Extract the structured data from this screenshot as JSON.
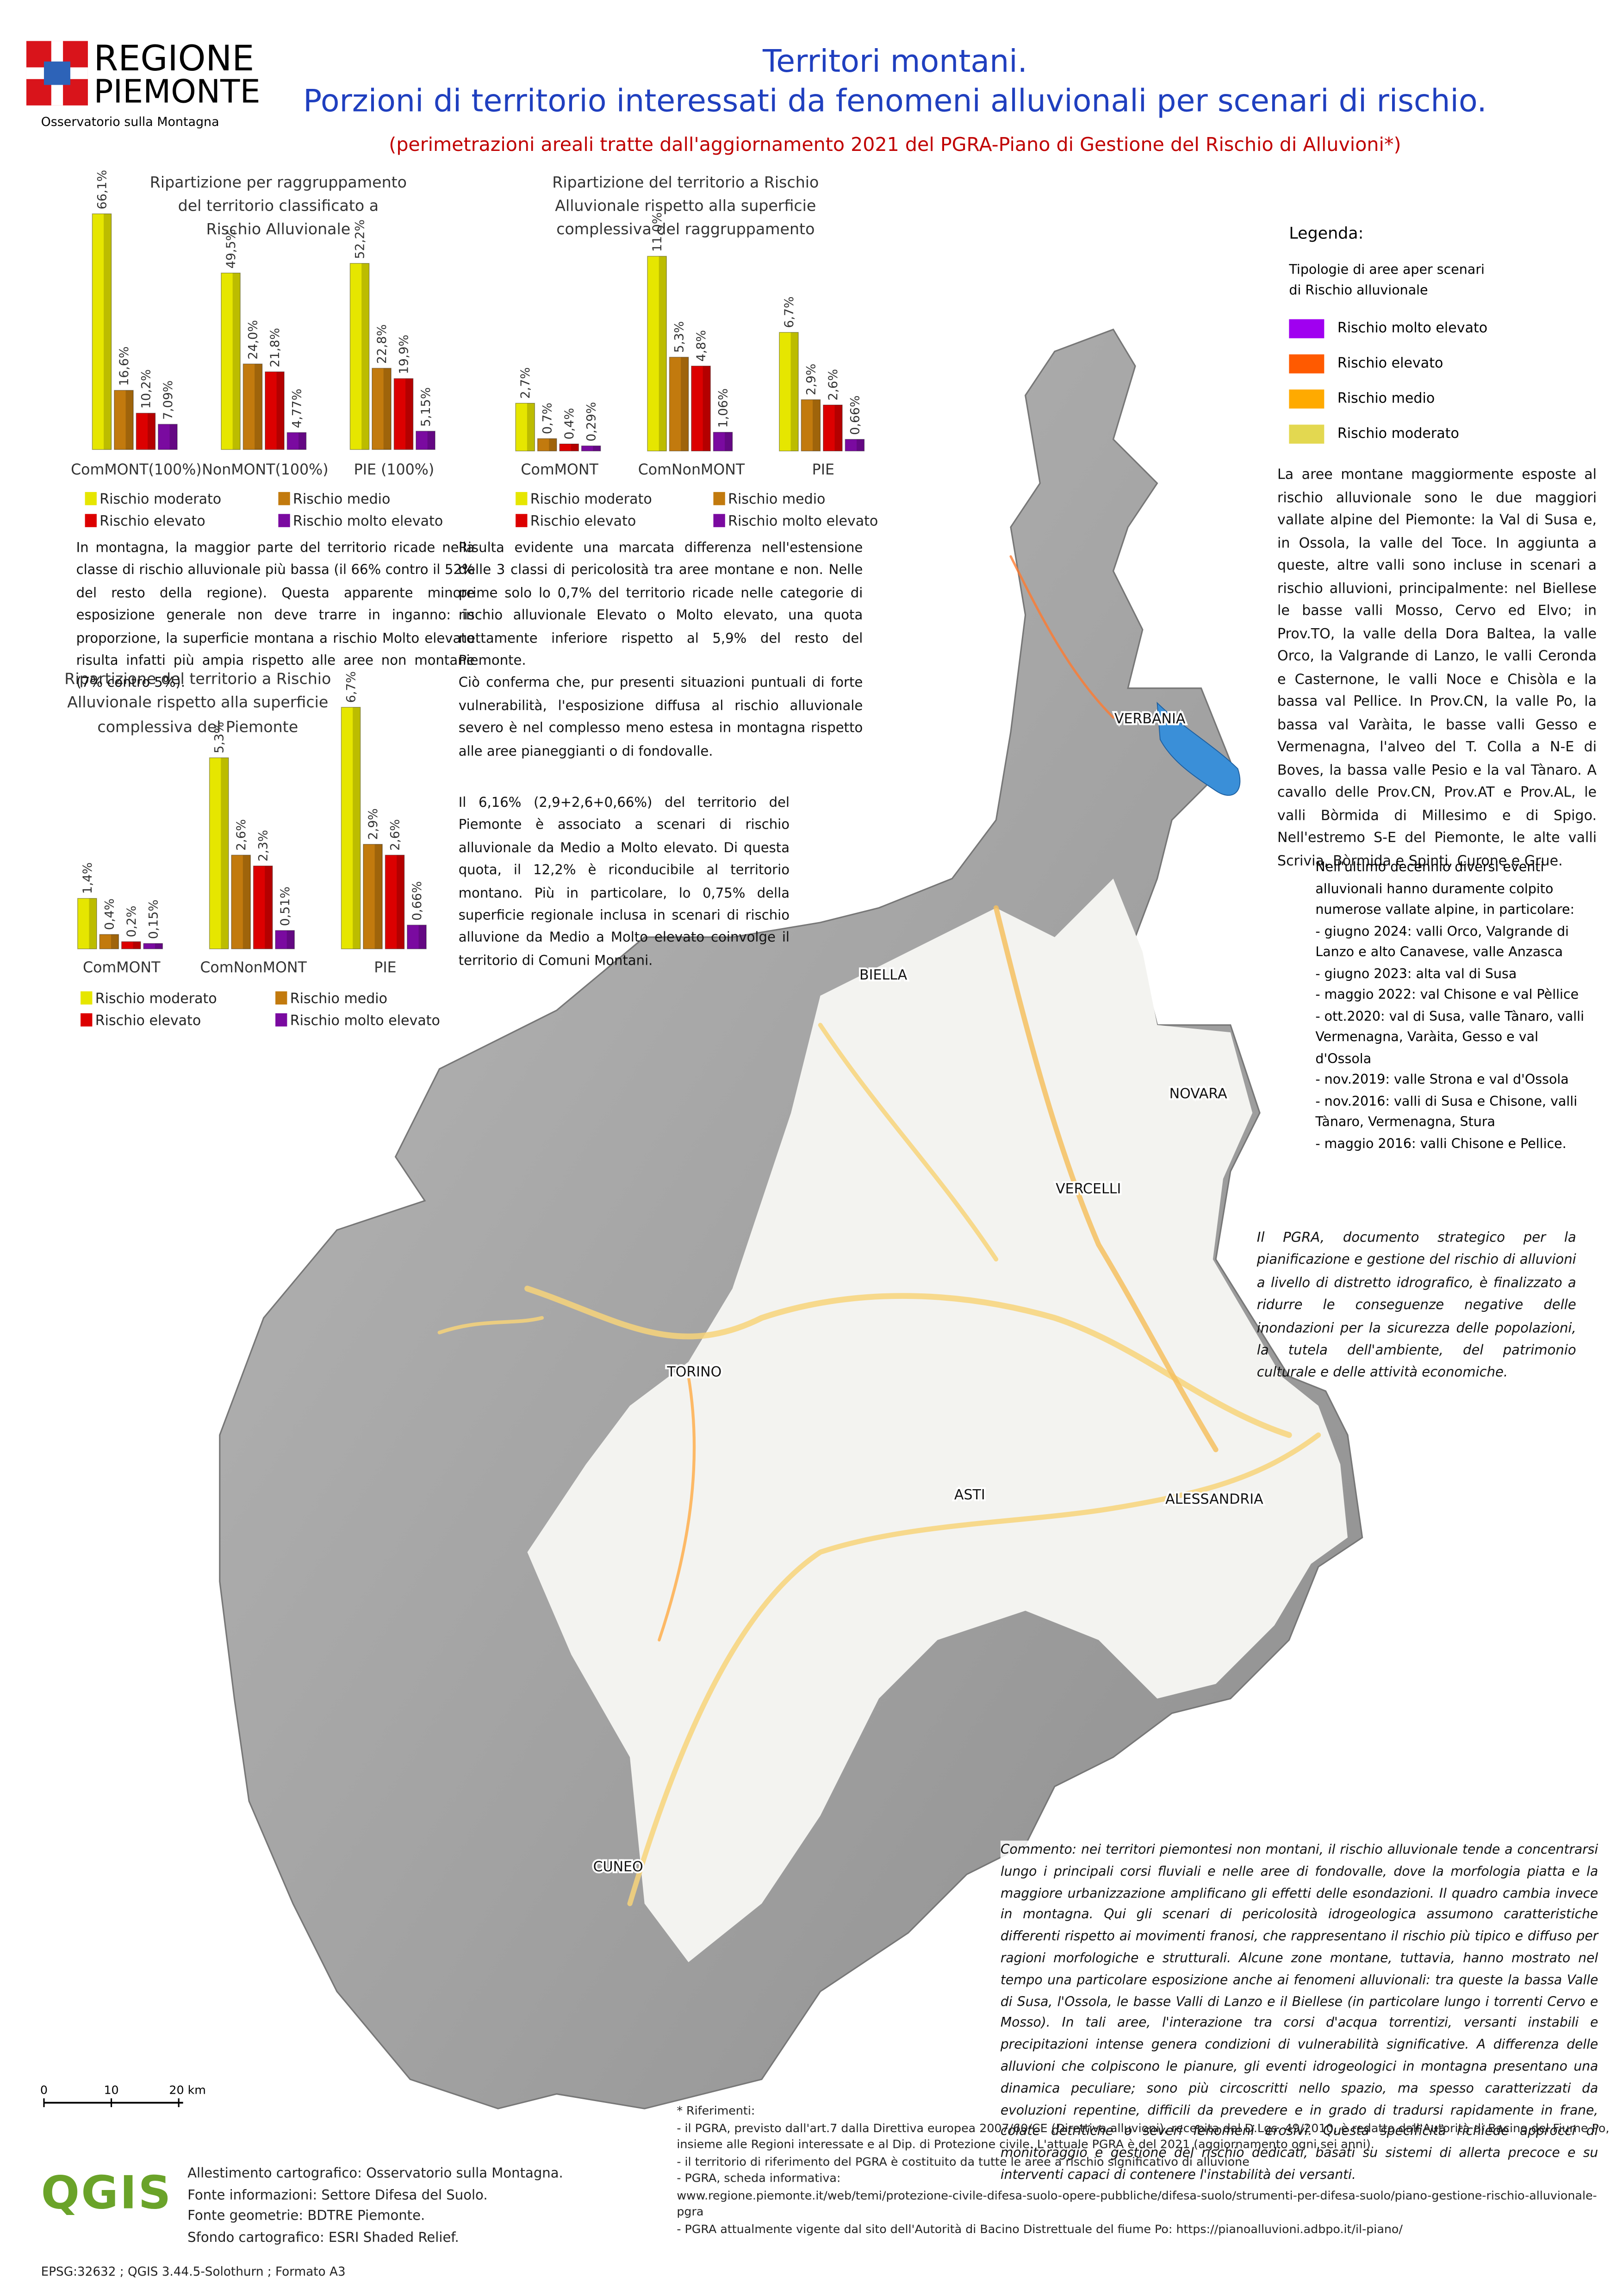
{
  "header": {
    "logo_line1": "REGIONE",
    "logo_line2": "PIEMONTE",
    "logo_sub": "Osservatorio sulla Montagna",
    "title_line1": "Territori montani.",
    "title_line2": "Porzioni di territorio interessati da fenomeni alluvionali per scenari di rischio.",
    "subtitle": "(perimetrazioni areali tratte dall'aggiornamento 2021 del PGRA-Piano di Gestione del Rischio di Alluvioni*)"
  },
  "chart_data": [
    {
      "type": "bar",
      "title": [
        "Ripartizione per raggruppamento",
        "del territorio classificato a",
        "Rischio Alluvionale"
      ],
      "categories": [
        "ComMONT(100%)",
        "NonMONT(100%)",
        "PIE (100%)"
      ],
      "series": [
        {
          "name": "Rischio moderato",
          "color": "#e6e600",
          "values": [
            66.1,
            49.5,
            52.2
          ],
          "value_labels": [
            "66,1%",
            "49,5%",
            "52,2%"
          ]
        },
        {
          "name": "Rischio medio",
          "color": "#c27a0e",
          "values": [
            16.6,
            24.0,
            22.8
          ],
          "value_labels": [
            "16,6%",
            "24,0%",
            "22,8%"
          ]
        },
        {
          "name": "Rischio elevato",
          "color": "#dc0000",
          "values": [
            10.2,
            21.8,
            19.9
          ],
          "value_labels": [
            "10,2%",
            "21,8%",
            "19,9%"
          ]
        },
        {
          "name": "Rischio molto elevato",
          "color": "#7a0aa0",
          "values": [
            7.09,
            4.77,
            5.15
          ],
          "value_labels": [
            "7,09%",
            "4,77%",
            "5,15%"
          ]
        }
      ]
    },
    {
      "type": "bar",
      "title": [
        "Ripartizione del territorio a Rischio",
        "Alluvionale rispetto alla superficie",
        "complessiva del raggruppamento"
      ],
      "categories": [
        "ComMONT",
        "ComNonMONT",
        "PIE"
      ],
      "series": [
        {
          "name": "Rischio moderato",
          "color": "#e6e600",
          "values": [
            2.7,
            11.0,
            6.7
          ],
          "value_labels": [
            "2,7%",
            "11,0%",
            "6,7%"
          ]
        },
        {
          "name": "Rischio medio",
          "color": "#c27a0e",
          "values": [
            0.7,
            5.3,
            2.9
          ],
          "value_labels": [
            "0,7%",
            "5,3%",
            "2,9%"
          ]
        },
        {
          "name": "Rischio elevato",
          "color": "#dc0000",
          "values": [
            0.4,
            4.8,
            2.6
          ],
          "value_labels": [
            "0,4%",
            "4,8%",
            "2,6%"
          ]
        },
        {
          "name": "Rischio molto elevato",
          "color": "#7a0aa0",
          "values": [
            0.29,
            1.06,
            0.66
          ],
          "value_labels": [
            "0,29%",
            "1,06%",
            "0,66%"
          ]
        }
      ]
    },
    {
      "type": "bar",
      "title": [
        "Ripartizione del territorio a Rischio",
        "Alluvionale rispetto alla superficie",
        "complessiva del Piemonte"
      ],
      "categories": [
        "ComMONT",
        "ComNonMONT",
        "PIE"
      ],
      "series": [
        {
          "name": "Rischio moderato",
          "color": "#e6e600",
          "values": [
            1.4,
            5.3,
            6.7
          ],
          "value_labels": [
            "1,4%",
            "5,3%",
            "6,7%"
          ]
        },
        {
          "name": "Rischio medio",
          "color": "#c27a0e",
          "values": [
            0.4,
            2.6,
            2.9
          ],
          "value_labels": [
            "0,4%",
            "2,6%",
            "2,9%"
          ]
        },
        {
          "name": "Rischio elevato",
          "color": "#dc0000",
          "values": [
            0.2,
            2.3,
            2.6
          ],
          "value_labels": [
            "0,2%",
            "2,3%",
            "2,6%"
          ]
        },
        {
          "name": "Rischio molto elevato",
          "color": "#7a0aa0",
          "values": [
            0.15,
            0.51,
            0.66
          ],
          "value_labels": [
            "0,15%",
            "0,51%",
            "0,66%"
          ]
        }
      ]
    }
  ],
  "texts": {
    "p1": "In montagna, la maggior parte del territorio ricade nella classe di rischio alluvionale più bassa (il 66% contro il 52% del resto della regione). Questa apparente minore esposizione generale non deve trarre in inganno: in proporzione, la superficie montana a rischio Molto elevato risulta infatti più ampia rispetto alle aree non montane (7% contro 5%).",
    "p2": "Risulta evidente una marcata differenza nell'estensione delle 3 classi di pericolosità tra aree montane e non. Nelle prime solo lo 0,7% del territorio ricade nelle categorie di rischio alluvionale Elevato o Molto elevato, una quota nettamente inferiore rispetto al 5,9% del resto del Piemonte.",
    "p3": "Ciò conferma che, pur presenti situazioni puntuali di forte vulnerabilità, l'esposizione diffusa al rischio alluvionale severo è nel complesso meno estesa in montagna rispetto alle aree pianeggianti o di fondovalle.",
    "p4": "Il 6,16% (2,9+2,6+0,66%) del territorio del Piemonte è associato a scenari di rischio alluvionale da Medio a Molto elevato. Di questa quota, il 12,2% è riconducibile al territorio montano. Più in particolare, lo 0,75% della superficie regionale inclusa in scenari di rischio alluvione da Medio a Molto elevato coinvolge il territorio di Comuni Montani.",
    "valleys": "La aree montane maggiormente esposte al rischio alluvionale sono le due maggiori vallate alpine del Piemonte: la Val di Susa e, in Ossola, la valle del Toce. In aggiunta a queste, altre valli sono incluse in scenari a rischio alluvioni, principalmente: nel Biellese le basse valli Mosso, Cervo ed Elvo; in Prov.TO, la valle della Dora Baltea, la valle Orco, la Valgrande di Lanzo, le valli Ceronda e Casternone, le valli Noce e Chisòla e la bassa val Pellice. In Prov.CN, la valle Po, la bassa val Varàita, le basse valli Gesso e Vermenagna, l'alveo del T. Colla a N-E di Boves, la bassa valle Pesio e la val Tànaro. A cavallo delle Prov.CN, Prov.AT e Prov.AL, le valli Bòrmida di Millesimo e di Spigo. Nell'estremo S-E del Piemonte, le alte valli Scrivia, Bòrmida e Spinti, Curone e Grue.",
    "events_intro": "Nell'ultimo decennio diversi eventi alluvionali hanno duramente colpito numerose vallate alpine, in particolare:",
    "events": [
      "- giugno 2024: valli Orco, Valgrande di Lanzo e alto Canavese, valle Anzasca",
      "- giugno 2023: alta val di Susa",
      "- maggio 2022: val Chisone e val Pèllice",
      "- ott.2020: val di Susa, valle Tànaro, valli Vermenagna, Varàita, Gesso e val d'Ossola",
      "- nov.2019: valle Strona e val d'Ossola",
      "- nov.2016: valli di Susa e Chisone, valli Tànaro, Vermenagna, Stura",
      "- maggio 2016: valli Chisone e Pellice."
    ],
    "pgra": "Il PGRA, documento strategico per la pianificazione e gestione del rischio di alluvioni a livello di distretto idrografico, è finalizzato a ridurre le conseguenze negative delle inondazioni per la sicurezza delle popolazioni, la tutela dell'ambiente, del patrimonio culturale e delle attività economiche.",
    "comment": "Commento: nei territori piemontesi non montani, il rischio alluvionale tende a concentrarsi lungo i principali corsi fluviali e nelle aree di fondovalle, dove la morfologia piatta e la maggiore urbanizzazione amplificano gli effetti delle esondazioni. Il quadro cambia invece in montagna. Qui gli scenari di pericolosità idrogeologica assumono caratteristiche differenti rispetto ai movimenti franosi, che rappresentano il rischio più tipico e diffuso per ragioni morfologiche e strutturali. Alcune zone montane, tuttavia, hanno mostrato nel tempo una particolare esposizione anche ai fenomeni alluvionali: tra queste la bassa Valle di Susa, l'Ossola, le basse Valli di Lanzo e il Biellese (in particolare lungo i torrenti Cervo e Mosso). In tali aree, l'interazione tra corsi d'acqua torrentizi, versanti instabili e precipitazioni intense genera condizioni di vulnerabilità significative. A differenza delle alluvioni che colpiscono le pianure, gli eventi idrogeologici in montagna presentano una dinamica peculiare; sono più circoscritti nello spazio, ma spesso caratterizzati da evoluzioni repentine, difficili da prevedere e in grado di tradursi rapidamente in frane, colate detritiche o severi fenomeni erosivi. Questa specificità richiede approcci di monitoraggio e gestione del rischio dedicati, basati su sistemi di allerta precoce e su interventi capaci di contenere l'instabilità dei versanti."
  },
  "legend": {
    "title": "Legenda:",
    "subtitle": [
      "Tipologie di aree aper scenari",
      "di Rischio alluvionale"
    ],
    "items": [
      {
        "label": "Rischio molto elevato",
        "color": "#a000f0"
      },
      {
        "label": "Rischio elevato",
        "color": "#ff5a00"
      },
      {
        "label": "Rischio medio",
        "color": "#ffaa00"
      },
      {
        "label": "Rischio moderato",
        "color": "#e3d850"
      }
    ]
  },
  "map": {
    "cities": [
      "VERBANIA",
      "BIELLA",
      "NOVARA",
      "VERCELLI",
      "TORINO",
      "ASTI",
      "ALESSANDRIA",
      "CUNEO"
    ],
    "scale_bar": [
      "0",
      "10",
      "20 km"
    ]
  },
  "footer": {
    "credits": [
      "Allestimento cartografico: Osservatorio sulla Montagna.",
      "Fonte informazioni: Settore Difesa del Suolo.",
      "Fonte geometrie: BDTRE Piemonte.",
      "Sfondo cartografico: ESRI Shaded Relief."
    ],
    "qgis": "QGIS",
    "epsg": "EPSG:32632 ; QGIS 3.44.5-Solothurn ; Formato A3",
    "references_title": "* Riferimenti:",
    "references": [
      "- il PGRA, previsto dall'art.7 dalla Direttiva europea 2007/60/CE (Direttiva alluvioni), recepita dal D.Lgs. 49/2010, è redatto dall'Autorità di Bacino del Fiume Po, insieme alle Regioni interessate e al Dip. di Protezione civile. L'attuale PGRA è del 2021 (aggiornamento ogni sei anni).",
      "- il territorio di riferimento del PGRA è costituito da tutte le aree a rischio significativo di alluvione",
      "- PGRA, scheda informativa:",
      "www.regione.piemonte.it/web/temi/protezione-civile-difesa-suolo-opere-pubbliche/difesa-suolo/strumenti-per-difesa-suolo/piano-gestione-rischio-alluvionale-pgra",
      "- PGRA attualmente vigente dal sito dell'Autorità di Bacino Distrettuale del fiume Po: https://pianoalluvioni.adbpo.it/il-piano/"
    ]
  }
}
